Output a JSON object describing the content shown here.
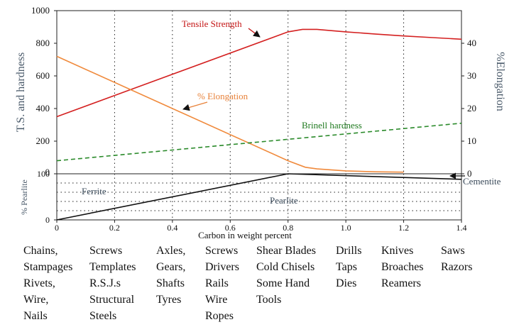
{
  "chart_data": [
    {
      "type": "line",
      "series": [
        {
          "name": "Tensile Strength",
          "color": "#d42020",
          "dash": "solid",
          "axis": "left",
          "x": [
            0,
            0.8,
            0.85,
            0.9,
            1.0,
            1.1,
            1.2,
            1.3,
            1.4
          ],
          "y": [
            350,
            870,
            885,
            885,
            870,
            857,
            845,
            835,
            825
          ]
        },
        {
          "name": "% Elongation",
          "color": "#f08a3c",
          "dash": "solid",
          "axis": "right",
          "x": [
            0,
            0.4,
            0.8,
            0.86,
            0.9,
            1.0,
            1.1,
            1.2
          ],
          "y": [
            36,
            20,
            4,
            2,
            1.5,
            0.9,
            0.6,
            0.5
          ]
        },
        {
          "name": "Brinell hardness",
          "color": "#2a8a2a",
          "dash": "dashed",
          "axis": "left",
          "x": [
            0,
            1.4
          ],
          "y": [
            80,
            310
          ]
        }
      ],
      "annotations": [
        {
          "text": "Tensile Strength",
          "color": "#c41414"
        },
        {
          "text": "% Elongation",
          "color": "#e8823a"
        },
        {
          "text": "Brinell hardness",
          "color": "#1f7a1f"
        }
      ],
      "yleft": {
        "label": "T.S. and hardness",
        "ticks": [
          0,
          200,
          400,
          600,
          800,
          1000
        ],
        "lim": [
          0,
          1000
        ]
      },
      "yright": {
        "label": "%Elongation",
        "ticks": [
          0,
          10,
          20,
          30,
          40
        ],
        "lim": [
          0,
          50
        ]
      },
      "xlim": [
        0,
        1.4
      ],
      "grid": "vertical-dotted"
    },
    {
      "type": "line",
      "series": [
        {
          "name": "Pearlite",
          "color": "#111111",
          "x": [
            0,
            0.8,
            1.4
          ],
          "y": [
            0,
            100,
            88
          ]
        }
      ],
      "annotations": [
        {
          "text": "Ferrite"
        },
        {
          "text": "Pearlite"
        },
        {
          "text": "Cementite"
        }
      ],
      "ylabel": "% Pearlite",
      "yticks": [
        0,
        100
      ],
      "xlabel": "Carbon in weight percent",
      "xticks": [
        "0",
        "0.2",
        "0.4",
        "0.6",
        "0.8",
        "1.0",
        "1.2",
        "1.4"
      ],
      "xlim": [
        0,
        1.4
      ],
      "ylim": [
        0,
        100
      ],
      "grid": "dotted"
    }
  ],
  "applications": [
    [
      "Chains,",
      "Stampages",
      "Rivets,",
      "Wire,",
      "Nails"
    ],
    [
      "Screws",
      "Templates",
      "R.S.J.s",
      "Structural",
      "Steels"
    ],
    [
      "Axles,",
      "Gears,",
      "Shafts",
      "Tyres"
    ],
    [
      "Screws",
      "Drivers",
      "Rails",
      "Wire",
      "Ropes"
    ],
    [
      "Shear Blades",
      "Cold Chisels",
      "Some Hand",
      "Tools"
    ],
    [
      "Drills",
      "Taps",
      "Dies"
    ],
    [
      "Knives",
      "Broaches",
      "Reamers"
    ],
    [
      "Saws",
      "Razors"
    ]
  ]
}
